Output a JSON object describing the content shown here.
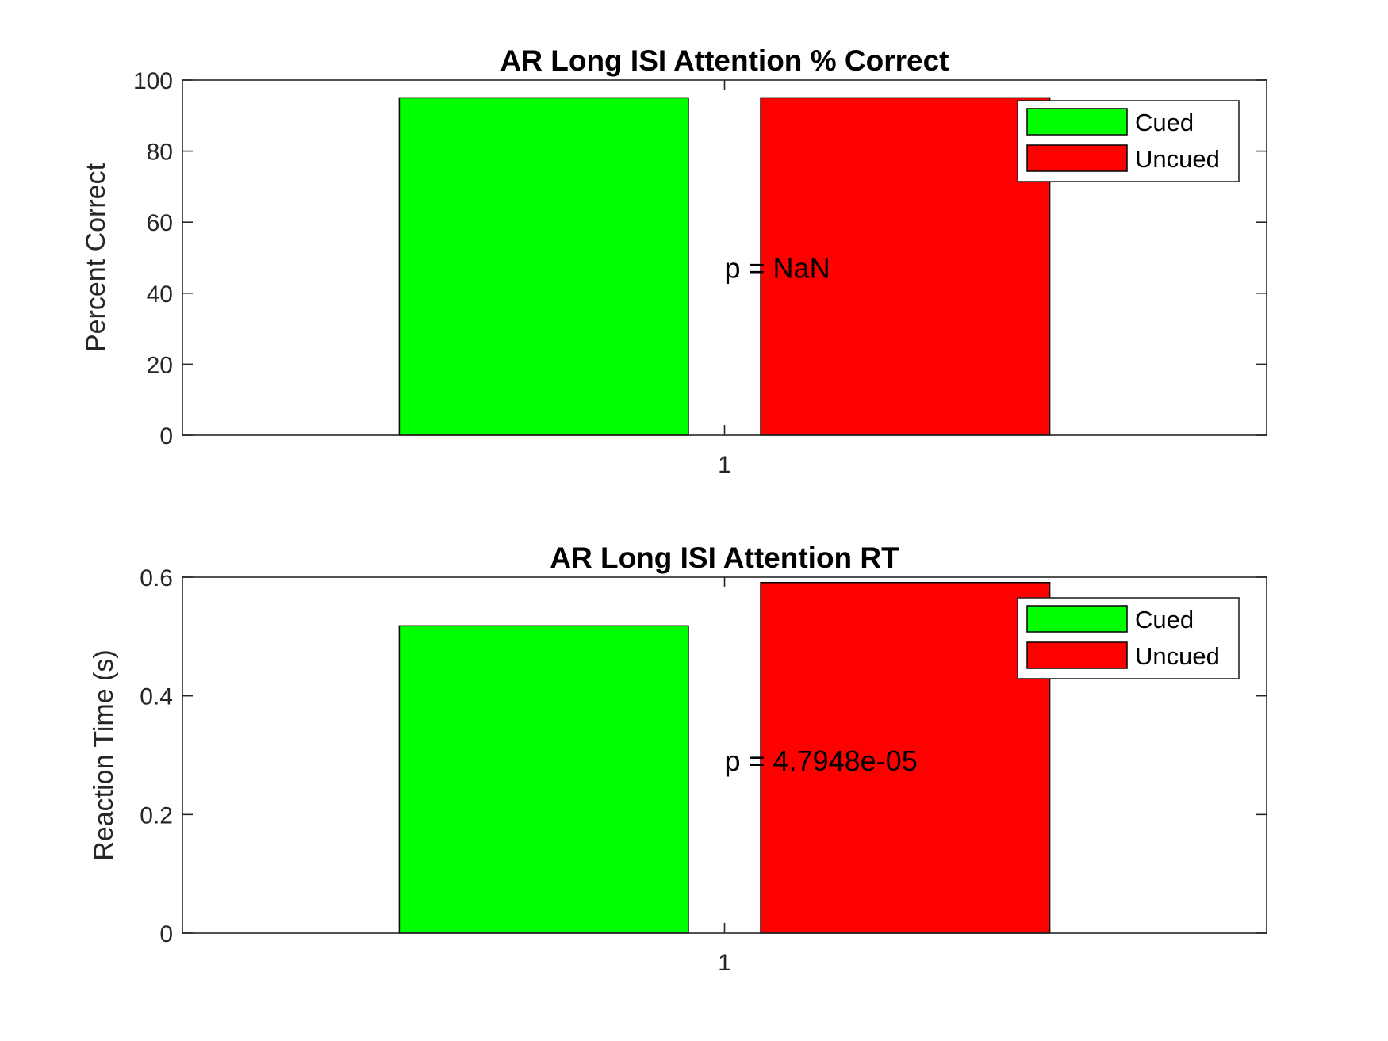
{
  "chart_data": [
    {
      "type": "bar",
      "title": "AR Long ISI Attention % Correct",
      "xlabel": "",
      "ylabel": "Percent Correct",
      "categories": [
        "1"
      ],
      "ylim": [
        0,
        100
      ],
      "yticks": [
        "0",
        "20",
        "40",
        "60",
        "80",
        "100"
      ],
      "series": [
        {
          "name": "Cued",
          "values": [
            95
          ],
          "color": "#00ff00"
        },
        {
          "name": "Uncued",
          "values": [
            95
          ],
          "color": "#ff0000"
        }
      ],
      "annotation": {
        "text": "p = NaN",
        "x": 1,
        "y": 47
      },
      "legend": "top-right",
      "grid": false
    },
    {
      "type": "bar",
      "title": "AR Long ISI Attention RT",
      "xlabel": "",
      "ylabel": "Reaction Time (s)",
      "categories": [
        "1"
      ],
      "ylim": [
        0,
        0.6
      ],
      "yticks": [
        "0",
        "0.2",
        "0.4",
        "0.6"
      ],
      "series": [
        {
          "name": "Cued",
          "values": [
            0.518
          ],
          "color": "#00ff00"
        },
        {
          "name": "Uncued",
          "values": [
            0.591
          ],
          "color": "#ff0000"
        }
      ],
      "annotation": {
        "text": "p = 4.7948e-05",
        "x": 1,
        "y": 0.29
      },
      "legend": "top-right",
      "grid": false
    }
  ]
}
